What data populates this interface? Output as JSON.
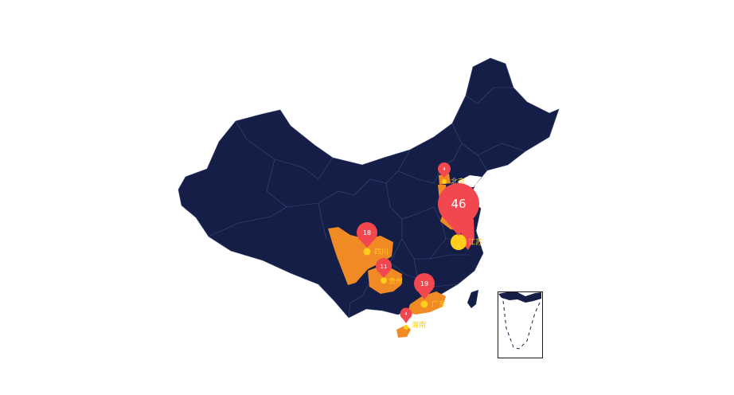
{
  "map": {
    "colors": {
      "land": "#141e46",
      "border": "#3e4b7a",
      "highlight": "#f08a24",
      "pin": "#f2474f",
      "scatter": "#ffce1a",
      "label": "#ffce1a",
      "inset_border": "#1a1a1a"
    },
    "highlighted_regions": [
      {
        "name": "北京",
        "value": 4
      },
      {
        "name": "江苏",
        "value": 46
      },
      {
        "name": "四川",
        "value": 18
      },
      {
        "name": "贵州",
        "value": 11
      },
      {
        "name": "广东",
        "value": 19
      },
      {
        "name": "海南",
        "value": 4
      }
    ],
    "inset": "南海诸岛"
  }
}
